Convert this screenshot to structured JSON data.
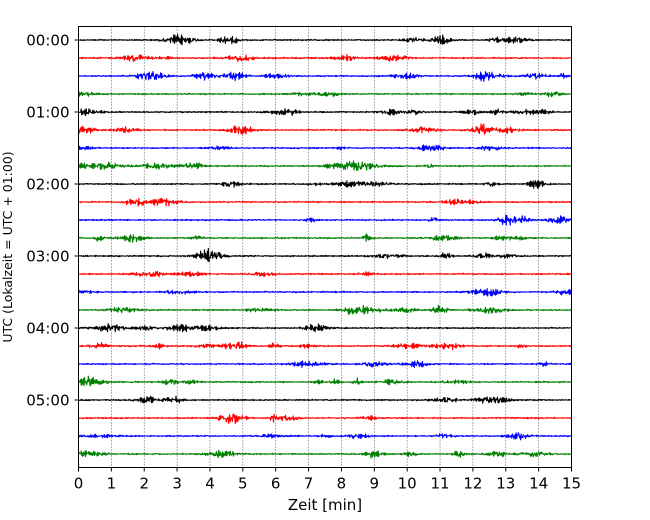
{
  "chart_data": {
    "type": "line",
    "title": "",
    "xlabel": "Zeit  [min]",
    "ylabel": "UTC (Lokalzeit = UTC + 01:00)",
    "xlim": [
      0,
      15
    ],
    "x_ticks": [
      "0",
      "1",
      "2",
      "3",
      "4",
      "5",
      "6",
      "7",
      "8",
      "9",
      "10",
      "11",
      "12",
      "13",
      "14",
      "15"
    ],
    "y_ticks": [
      "00:00",
      "01:00",
      "02:00",
      "03:00",
      "04:00",
      "05:00"
    ],
    "grid": "vertical dotted lines at each minute",
    "trace_interval_min": 15,
    "trace_colors": [
      "#000000",
      "#ff0000",
      "#0000ff",
      "#008000"
    ],
    "traces": [
      {
        "start": "00:00",
        "color": "#000000"
      },
      {
        "start": "00:15",
        "color": "#ff0000"
      },
      {
        "start": "00:30",
        "color": "#0000ff"
      },
      {
        "start": "00:45",
        "color": "#008000"
      },
      {
        "start": "01:00",
        "color": "#000000"
      },
      {
        "start": "01:15",
        "color": "#ff0000"
      },
      {
        "start": "01:30",
        "color": "#0000ff"
      },
      {
        "start": "01:45",
        "color": "#008000"
      },
      {
        "start": "02:00",
        "color": "#000000"
      },
      {
        "start": "02:15",
        "color": "#ff0000"
      },
      {
        "start": "02:30",
        "color": "#0000ff"
      },
      {
        "start": "02:45",
        "color": "#008000"
      },
      {
        "start": "03:00",
        "color": "#000000"
      },
      {
        "start": "03:15",
        "color": "#ff0000"
      },
      {
        "start": "03:30",
        "color": "#0000ff"
      },
      {
        "start": "03:45",
        "color": "#008000"
      },
      {
        "start": "04:00",
        "color": "#000000"
      },
      {
        "start": "04:15",
        "color": "#ff0000"
      },
      {
        "start": "04:30",
        "color": "#0000ff"
      },
      {
        "start": "04:45",
        "color": "#008000"
      },
      {
        "start": "05:00",
        "color": "#000000"
      },
      {
        "start": "05:15",
        "color": "#ff0000"
      },
      {
        "start": "05:30",
        "color": "#0000ff"
      },
      {
        "start": "05:45",
        "color": "#008000"
      }
    ]
  }
}
